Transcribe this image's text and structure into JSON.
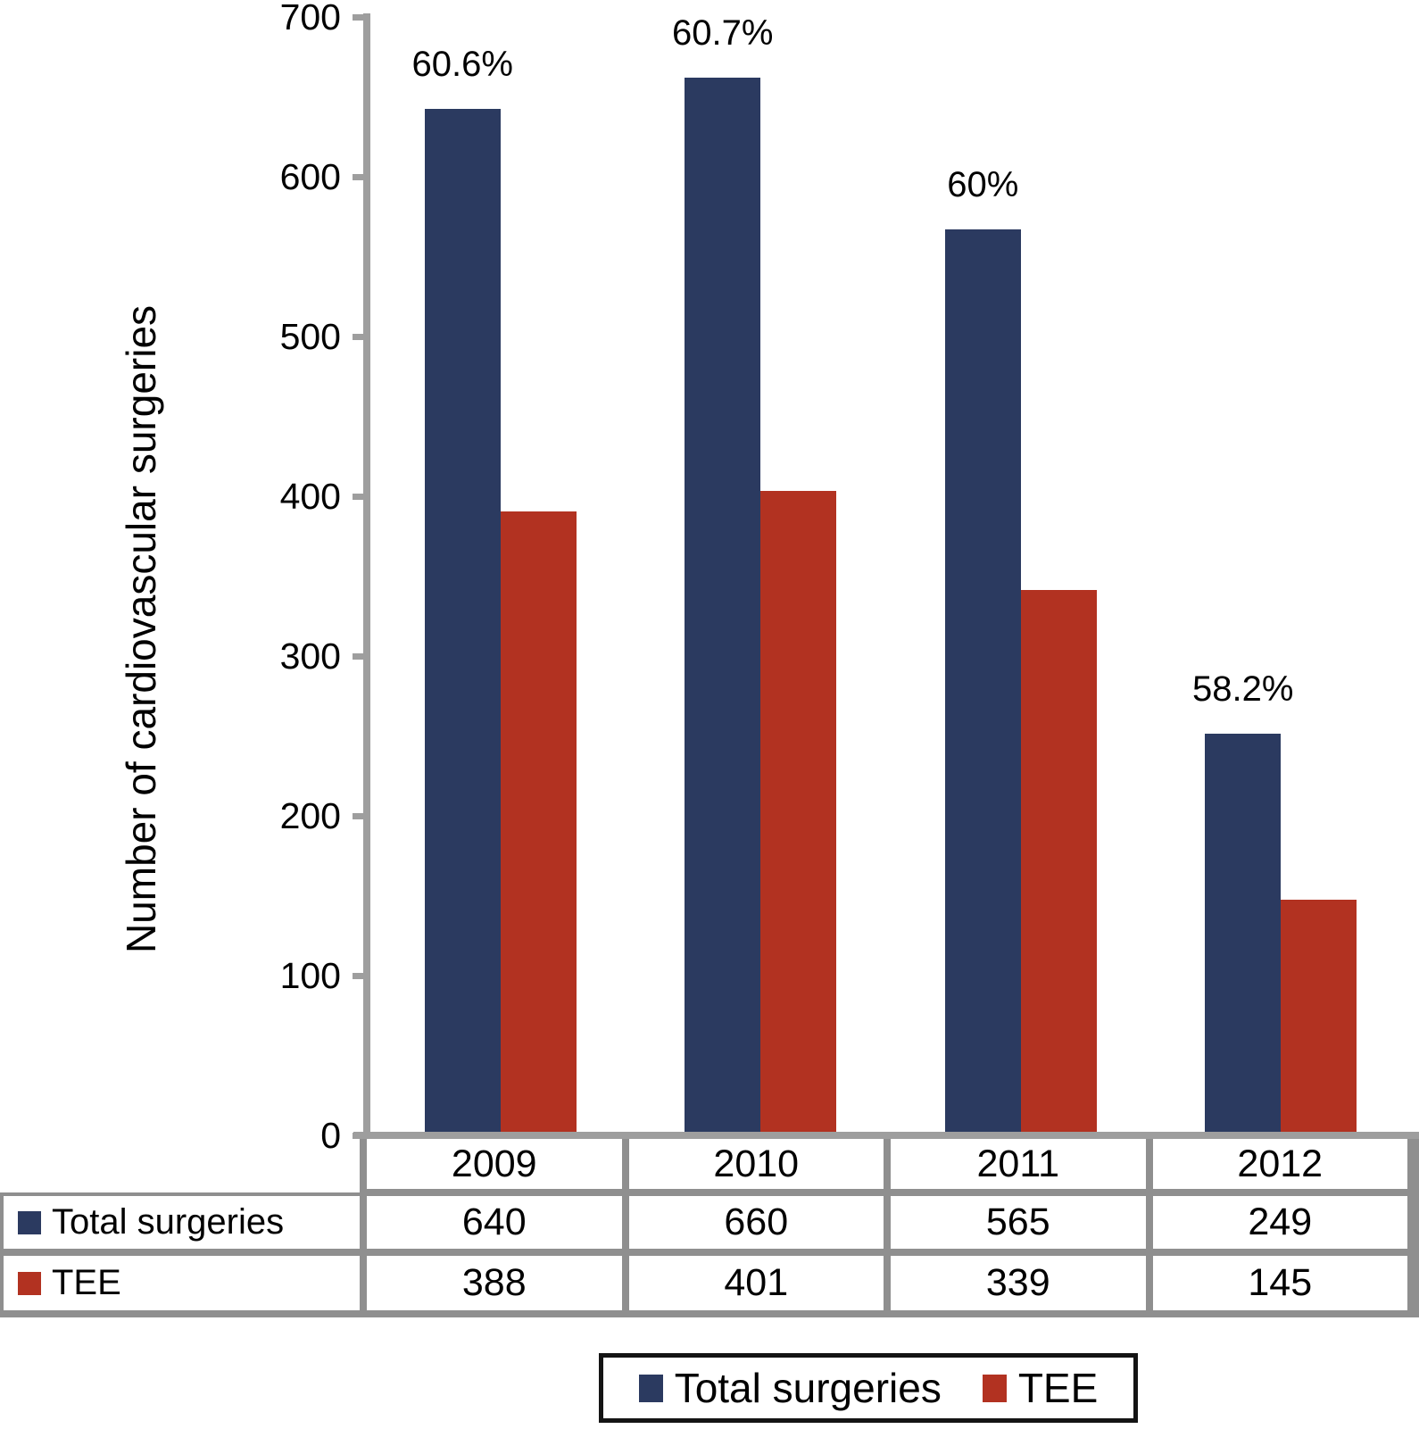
{
  "chart_data": {
    "type": "bar",
    "categories": [
      "2009",
      "2010",
      "2011",
      "2012"
    ],
    "series": [
      {
        "name": "Total surgeries",
        "color": "#2b3a60",
        "values": [
          640,
          660,
          565,
          249
        ]
      },
      {
        "name": "TEE",
        "color": "#b23221",
        "values": [
          388,
          401,
          339,
          145
        ]
      }
    ],
    "bar_group_labels": [
      "60.6%",
      "60.7%",
      "60%",
      "58.2%"
    ],
    "title": "",
    "xlabel": "",
    "ylabel": "Number of cardiovascular surgeries",
    "ylim": [
      0,
      700
    ],
    "yticks": [
      0,
      100,
      200,
      300,
      400,
      500,
      600,
      700
    ],
    "grid": false,
    "legend_position": "bottom",
    "legend_entries": [
      "Total surgeries",
      "TEE"
    ],
    "data_table": {
      "column_headers": [
        "2009",
        "2010",
        "2011",
        "2012"
      ],
      "rows": [
        {
          "label": "Total surgeries",
          "values": [
            "640",
            "660",
            "565",
            "249"
          ]
        },
        {
          "label": "TEE",
          "values": [
            "388",
            "401",
            "339",
            "145"
          ]
        }
      ]
    }
  },
  "colors": {
    "total_surgeries": "#2b3a60",
    "tee": "#b23221",
    "axis": "#9e9e9e",
    "table_border": "#8f8f8f",
    "legend_border": "#141414"
  }
}
